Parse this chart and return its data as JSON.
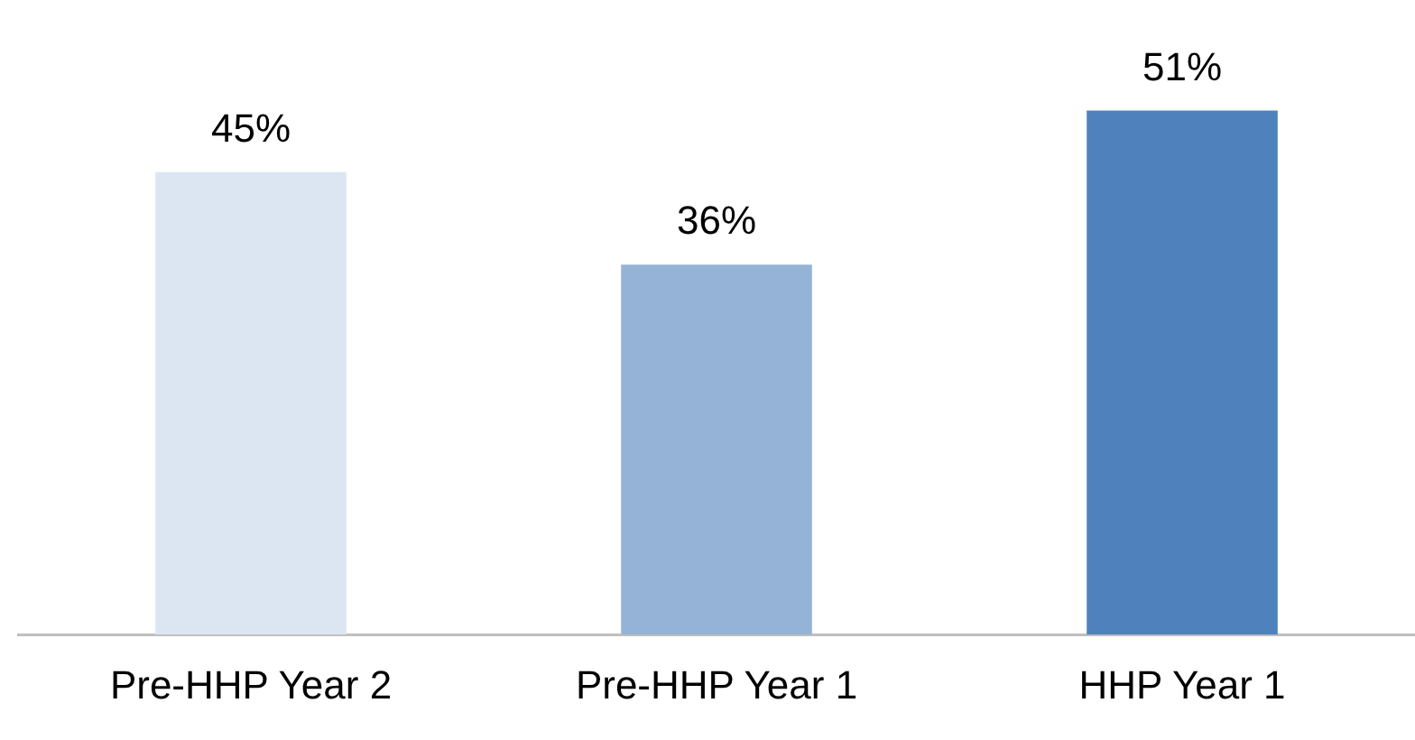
{
  "chart_data": {
    "type": "bar",
    "categories": [
      "Pre-HHP Year 2",
      "Pre-HHP Year 1",
      "HHP Year 1"
    ],
    "values": [
      45,
      36,
      51
    ],
    "colors": [
      "#dce6f2",
      "#95b3d7",
      "#4f81bd"
    ],
    "data_labels": true,
    "value_labels": [
      "45%",
      "36%",
      "51%"
    ],
    "grid": false,
    "legend": false
  }
}
